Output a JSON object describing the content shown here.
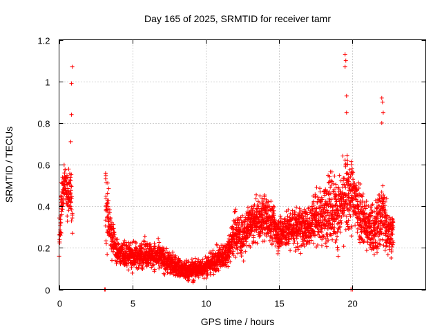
{
  "chart_data": {
    "type": "scatter",
    "title": "Day 165 of 2025, SRMTID for receiver tamr",
    "xlabel": "GPS time / hours",
    "ylabel": "SRMTID / TECUs",
    "xlim": [
      0,
      25
    ],
    "ylim": [
      0,
      1.2
    ],
    "x_ticks": [
      0,
      5,
      10,
      15,
      20
    ],
    "y_ticks": [
      0,
      0.2,
      0.4,
      0.6,
      0.8,
      1.0,
      1.2
    ],
    "x_tick_labels": [
      "0",
      "5",
      "10",
      "15",
      "20"
    ],
    "y_tick_labels": [
      "0",
      "0.2",
      "0.4",
      "0.6",
      "0.8",
      "1",
      "1.2"
    ],
    "grid": true,
    "marker": "+",
    "series": [
      {
        "name": "SRMTID",
        "color": "#ff0000",
        "profile": [
          [
            0.0,
            0.2,
            0.06
          ],
          [
            0.2,
            0.45,
            0.1
          ],
          [
            0.4,
            0.52,
            0.07
          ],
          [
            0.6,
            0.45,
            0.09
          ],
          [
            0.8,
            0.45,
            0.1
          ],
          [
            0.9,
            0.4,
            0.1
          ],
          [
            3.2,
            0.4,
            0.16
          ],
          [
            3.6,
            0.25,
            0.07
          ],
          [
            4.0,
            0.18,
            0.05
          ],
          [
            5.0,
            0.16,
            0.05
          ],
          [
            6.0,
            0.17,
            0.05
          ],
          [
            7.0,
            0.15,
            0.05
          ],
          [
            8.0,
            0.11,
            0.04
          ],
          [
            8.5,
            0.09,
            0.04
          ],
          [
            9.0,
            0.09,
            0.04
          ],
          [
            10.0,
            0.11,
            0.04
          ],
          [
            10.5,
            0.13,
            0.04
          ],
          [
            11.0,
            0.15,
            0.05
          ],
          [
            11.5,
            0.18,
            0.05
          ],
          [
            12.0,
            0.28,
            0.09
          ],
          [
            12.5,
            0.25,
            0.08
          ],
          [
            13.0,
            0.31,
            0.08
          ],
          [
            13.5,
            0.33,
            0.08
          ],
          [
            14.0,
            0.35,
            0.09
          ],
          [
            14.5,
            0.32,
            0.08
          ],
          [
            15.0,
            0.27,
            0.07
          ],
          [
            15.5,
            0.28,
            0.07
          ],
          [
            16.0,
            0.3,
            0.08
          ],
          [
            16.5,
            0.29,
            0.08
          ],
          [
            17.0,
            0.3,
            0.08
          ],
          [
            17.5,
            0.36,
            0.1
          ],
          [
            18.0,
            0.34,
            0.1
          ],
          [
            18.5,
            0.42,
            0.15
          ],
          [
            19.0,
            0.36,
            0.12
          ],
          [
            19.5,
            0.45,
            0.15
          ],
          [
            20.0,
            0.45,
            0.15
          ],
          [
            20.5,
            0.38,
            0.12
          ],
          [
            21.0,
            0.3,
            0.1
          ],
          [
            21.5,
            0.28,
            0.1
          ],
          [
            22.0,
            0.37,
            0.14
          ],
          [
            22.5,
            0.28,
            0.09
          ],
          [
            22.8,
            0.27,
            0.08
          ]
        ],
        "sample_times": {
          "start": 0.0,
          "end": 22.8,
          "step": 0.006,
          "gaps": [
            [
              0.9,
              3.15
            ]
          ]
        },
        "extremes": [
          {
            "x": 0.9,
            "y": 1.07
          },
          {
            "x": 0.85,
            "y": 0.99
          },
          {
            "x": 0.85,
            "y": 0.84
          },
          {
            "x": 0.8,
            "y": 0.71
          },
          {
            "x": 3.1,
            "y": 0.0
          },
          {
            "x": 3.15,
            "y": 0.0
          },
          {
            "x": 19.5,
            "y": 1.13
          },
          {
            "x": 19.55,
            "y": 1.1
          },
          {
            "x": 19.5,
            "y": 1.07
          },
          {
            "x": 19.6,
            "y": 0.93
          },
          {
            "x": 19.6,
            "y": 0.85
          },
          {
            "x": 19.9,
            "y": 0.0
          },
          {
            "x": 20.0,
            "y": 0.0
          },
          {
            "x": 22.0,
            "y": 0.92
          },
          {
            "x": 22.05,
            "y": 0.9
          },
          {
            "x": 22.1,
            "y": 0.85
          },
          {
            "x": 22.0,
            "y": 0.8
          }
        ]
      }
    ]
  }
}
